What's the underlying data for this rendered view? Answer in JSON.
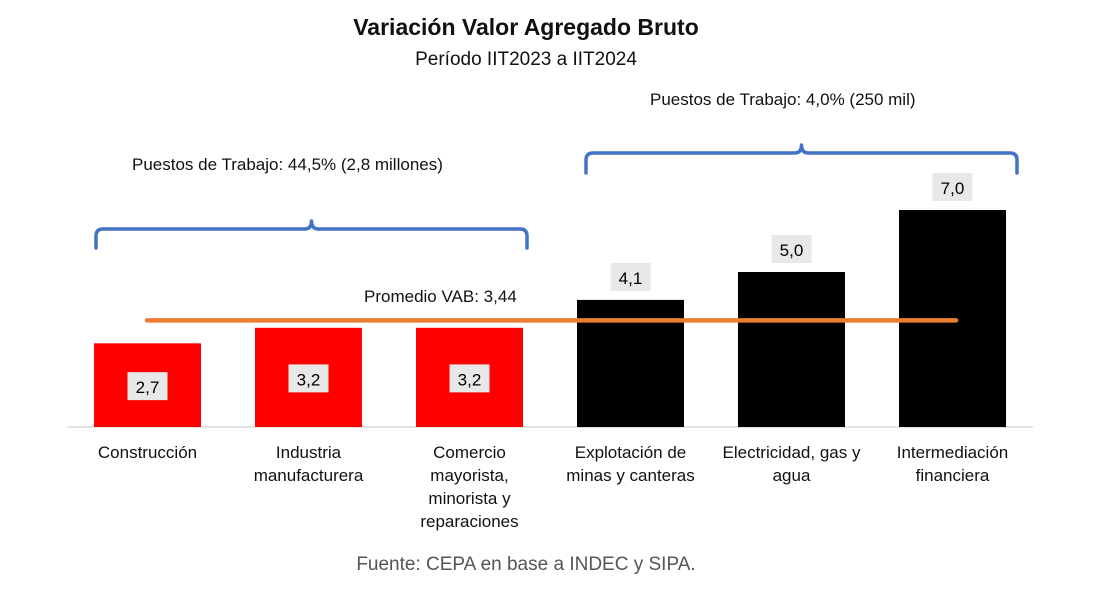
{
  "chart_data": {
    "type": "bar",
    "title": "Variación Valor Agregado Bruto",
    "subtitle": "Período IIT2023 a IIT2024",
    "categories": [
      [
        "Construcción"
      ],
      [
        "Industria",
        "manufacturera"
      ],
      [
        "Comercio",
        "mayorista,",
        "minorista y",
        "reparaciones"
      ],
      [
        "Explotación de",
        "minas y canteras"
      ],
      [
        "Electricidad, gas y",
        "agua"
      ],
      [
        "Intermediación",
        "financiera"
      ]
    ],
    "values": [
      2.7,
      3.2,
      3.2,
      4.1,
      5.0,
      7.0
    ],
    "value_labels": [
      "2,7",
      "3,2",
      "3,2",
      "4,1",
      "5,0",
      "7,0"
    ],
    "bar_colors": [
      "#ff0000",
      "#ff0000",
      "#ff0000",
      "#000000",
      "#000000",
      "#000000"
    ],
    "ylim": [
      0,
      7.0
    ],
    "reference_line": {
      "value": 3.44,
      "label": "Promedio VAB: 3,44",
      "color": "#ed7d31"
    },
    "groups": [
      {
        "label": "Puestos de Trabajo: 44,5% (2,8 millones)",
        "start_index": 0,
        "end_index": 2
      },
      {
        "label": "Puestos de Trabajo: 4,0% (250 mil)",
        "start_index": 3,
        "end_index": 5
      }
    ],
    "bracket_color": "#4472c4",
    "source": "Fuente: CEPA en base a INDEC y SIPA.",
    "xlabel": "",
    "ylabel": "",
    "grid": false
  }
}
